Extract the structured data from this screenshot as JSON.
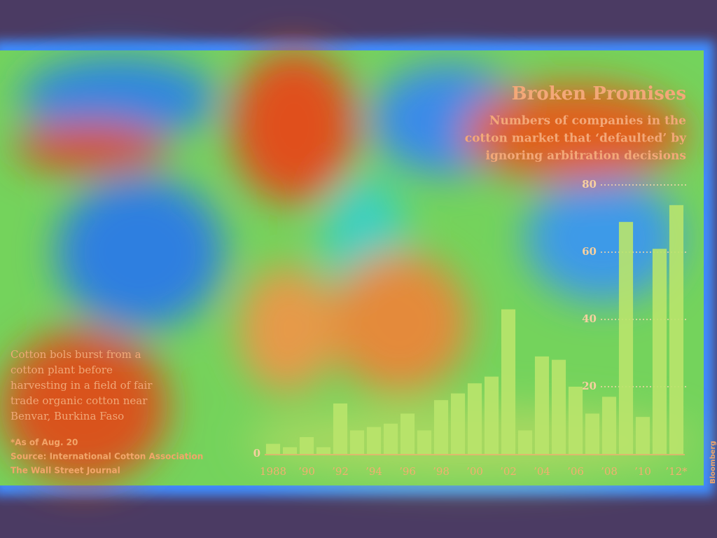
{
  "chart_data": {
    "type": "bar",
    "title": "Broken Promises",
    "subtitle": [
      "Numbers of companies in the",
      "cotton market that  ‘defaulted’ by",
      "ignoring arbitration decisions"
    ],
    "caption": [
      "Cotton bols burst from a",
      "cotton plant before",
      "harvesting in a field of fair",
      "trade organic cotton near",
      "Benvar, Burkina Faso"
    ],
    "note": "*As of Aug. 20",
    "source": "Source: International Cotton Association",
    "publisher": "The Wall Street Journal",
    "credit": "Bloomberg",
    "categories": [
      "1988",
      null,
      "’90",
      null,
      "’92",
      null,
      "’94",
      null,
      "’96",
      null,
      "’98",
      null,
      "’00",
      null,
      "’02",
      null,
      "’04",
      null,
      "’06",
      null,
      "’08",
      null,
      "’10",
      null,
      "’12*"
    ],
    "values": [
      3,
      2,
      5,
      2,
      15,
      7,
      8,
      9,
      12,
      7,
      16,
      18,
      21,
      23,
      43,
      7,
      29,
      28,
      20,
      12,
      17,
      69,
      11,
      61,
      74
    ],
    "color": "#b9e46c",
    "ylim": [
      0,
      80
    ],
    "yticks": [
      0,
      20,
      40,
      60,
      80
    ],
    "grid": true
  }
}
